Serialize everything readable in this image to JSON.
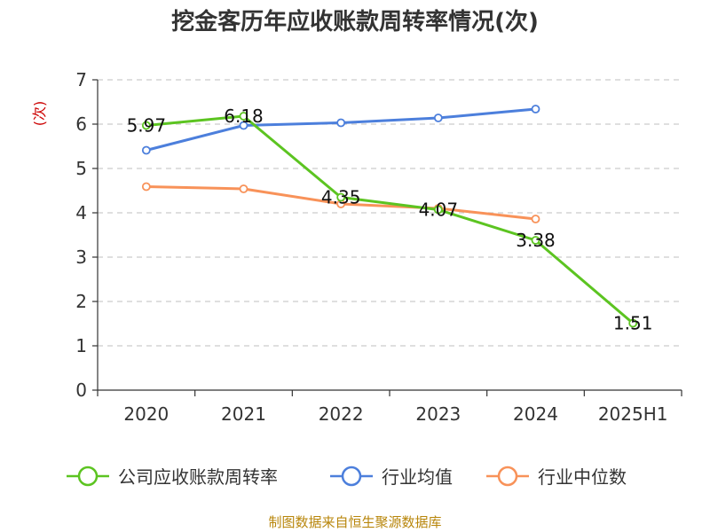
{
  "chart_data": {
    "type": "line",
    "title": "挖金客历年应收账款周转率情况(次)",
    "ylabel": "(次)",
    "xlabel": "",
    "ylim": [
      0,
      7
    ],
    "yticks": [
      0,
      1,
      2,
      3,
      4,
      5,
      6,
      7
    ],
    "categories": [
      "2020",
      "2021",
      "2022",
      "2023",
      "2024",
      "2025H1"
    ],
    "grid": true,
    "legend_position": "bottom",
    "series": [
      {
        "name": "公司应收账款周转率",
        "color": "#5cc421",
        "values": [
          5.97,
          6.18,
          4.35,
          4.07,
          3.38,
          1.51
        ],
        "labels": [
          "5.97",
          "6.18",
          "4.35",
          "4.07",
          "3.38",
          "1.51"
        ]
      },
      {
        "name": "行业均值",
        "color": "#4c7fdc",
        "values": [
          5.41,
          5.97,
          6.03,
          6.14,
          6.34,
          null
        ]
      },
      {
        "name": "行业中位数",
        "color": "#f89259",
        "values": [
          4.59,
          4.54,
          4.2,
          4.1,
          3.86,
          null
        ]
      }
    ]
  },
  "footer": "制图数据来自恒生聚源数据库"
}
